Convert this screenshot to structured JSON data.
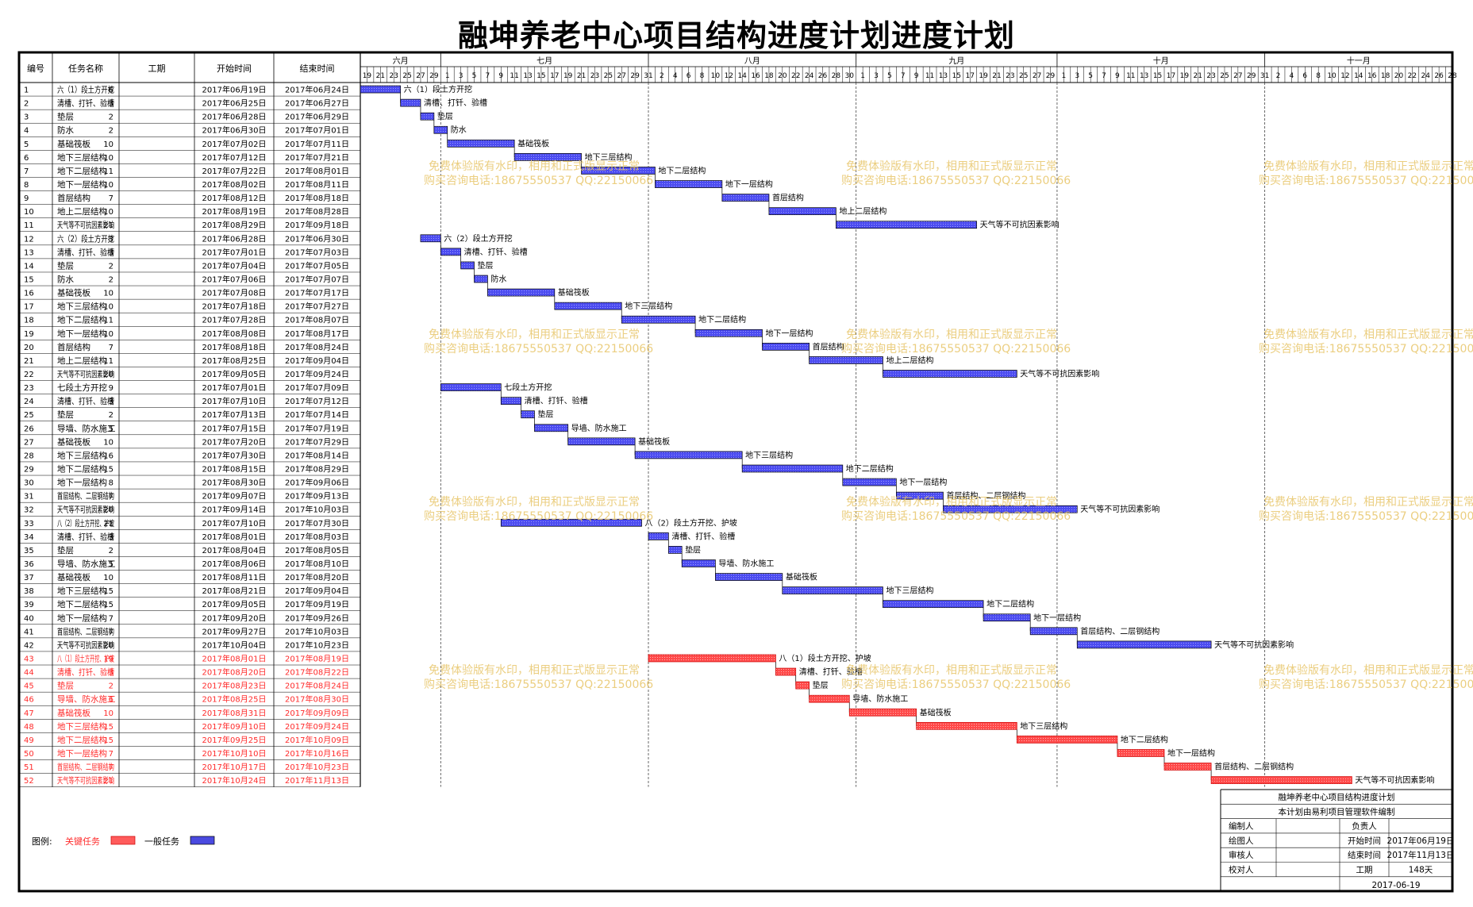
{
  "title": "融坤养老中心项目结构进度计划进度计划",
  "headers": {
    "no": "编号",
    "name": "任务名称",
    "duration": "工期",
    "start": "开始时间",
    "end": "结束时间"
  },
  "timeline": {
    "months": [
      "六月",
      "七月",
      "八月",
      "九月",
      "十月",
      "十一月"
    ],
    "start_date": "2017-06-19",
    "end_date": "2017-11-28"
  },
  "watermark": {
    "line1": "免费体验版有水印，相用和正式版显示正常",
    "line2": "购买咨询电话:18675550537 QQ:22150066"
  },
  "legend": {
    "label": "图例:",
    "critical": "关键任务",
    "normal": "一般任务",
    "critical_color": "#ff5b5b",
    "normal_color": "#4a4ae0"
  },
  "title_block": {
    "project": "融坤养老中心项目结构进度计划",
    "software": "本计划由易利项目管理软件编制",
    "rows": [
      [
        "编制人",
        "",
        "负责人",
        ""
      ],
      [
        "绘图人",
        "",
        "开始时间",
        "2017年06月19日"
      ],
      [
        "审核人",
        "",
        "结束时间",
        "2017年11月13日"
      ],
      [
        "校对人",
        "",
        "工期",
        "148天"
      ]
    ],
    "date": "2017-06-19"
  },
  "chart_data": {
    "type": "gantt",
    "tasks": [
      {
        "id": "1",
        "name": "六（1）段土方开挖",
        "duration": 6,
        "start": "2017-06-19",
        "end": "2017-06-24",
        "label": "六（1）段土方开挖",
        "critical": false
      },
      {
        "id": "2",
        "name": "清槽、打钎、验槽",
        "duration": 3,
        "start": "2017-06-25",
        "end": "2017-06-27",
        "label": "清槽、打钎、验槽",
        "critical": false
      },
      {
        "id": "3",
        "name": "垫层",
        "duration": 2,
        "start": "2017-06-28",
        "end": "2017-06-29",
        "label": "垫层",
        "critical": false
      },
      {
        "id": "4",
        "name": "防水",
        "duration": 2,
        "start": "2017-06-30",
        "end": "2017-07-01",
        "label": "防水",
        "critical": false
      },
      {
        "id": "5",
        "name": "基础筏板",
        "duration": 10,
        "start": "2017-07-02",
        "end": "2017-07-11",
        "label": "基础筏板",
        "critical": false
      },
      {
        "id": "6",
        "name": "地下三层结构",
        "duration": 10,
        "start": "2017-07-12",
        "end": "2017-07-21",
        "label": "地下三层结构",
        "critical": false
      },
      {
        "id": "7",
        "name": "地下二层结构",
        "duration": 11,
        "start": "2017-07-22",
        "end": "2017-08-01",
        "label": "地下二层结构",
        "critical": false
      },
      {
        "id": "8",
        "name": "地下一层结构",
        "duration": 10,
        "start": "2017-08-02",
        "end": "2017-08-11",
        "label": "地下一层结构",
        "critical": false
      },
      {
        "id": "9",
        "name": "首层结构",
        "duration": 7,
        "start": "2017-08-12",
        "end": "2017-08-18",
        "label": "首层结构",
        "critical": false
      },
      {
        "id": "10",
        "name": "地上二层结构",
        "duration": 10,
        "start": "2017-08-19",
        "end": "2017-08-28",
        "label": "地上二层结构",
        "critical": false
      },
      {
        "id": "11",
        "name": "天气等不可抗因素影响",
        "duration": 21,
        "start": "2017-08-29",
        "end": "2017-09-18",
        "label": "天气等不可抗因素影响",
        "critical": false
      },
      {
        "id": "12",
        "name": "六（2）段土方开挖",
        "duration": 3,
        "start": "2017-06-28",
        "end": "2017-06-30",
        "label": "六（2）段土方开挖",
        "critical": false
      },
      {
        "id": "13",
        "name": "清槽、打钎、验槽",
        "duration": 3,
        "start": "2017-07-01",
        "end": "2017-07-03",
        "label": "清槽、打钎、验槽",
        "critical": false
      },
      {
        "id": "14",
        "name": "垫层",
        "duration": 2,
        "start": "2017-07-04",
        "end": "2017-07-05",
        "label": "垫层",
        "critical": false
      },
      {
        "id": "15",
        "name": "防水",
        "duration": 2,
        "start": "2017-07-06",
        "end": "2017-07-07",
        "label": "防水",
        "critical": false
      },
      {
        "id": "16",
        "name": "基础筏板",
        "duration": 10,
        "start": "2017-07-08",
        "end": "2017-07-17",
        "label": "基础筏板",
        "critical": false
      },
      {
        "id": "17",
        "name": "地下三层结构",
        "duration": 10,
        "start": "2017-07-18",
        "end": "2017-07-27",
        "label": "地下三层结构",
        "critical": false
      },
      {
        "id": "18",
        "name": "地下二层结构",
        "duration": 11,
        "start": "2017-07-28",
        "end": "2017-08-07",
        "label": "地下二层结构",
        "critical": false
      },
      {
        "id": "19",
        "name": "地下一层结构",
        "duration": 10,
        "start": "2017-08-08",
        "end": "2017-08-17",
        "label": "地下一层结构",
        "critical": false
      },
      {
        "id": "20",
        "name": "首层结构",
        "duration": 7,
        "start": "2017-08-18",
        "end": "2017-08-24",
        "label": "首层结构",
        "critical": false
      },
      {
        "id": "21",
        "name": "地上二层结构",
        "duration": 11,
        "start": "2017-08-25",
        "end": "2017-09-04",
        "label": "地上二层结构",
        "critical": false
      },
      {
        "id": "22",
        "name": "天气等不可抗因素影响",
        "duration": 20,
        "start": "2017-09-05",
        "end": "2017-09-24",
        "label": "天气等不可抗因素影响",
        "critical": false
      },
      {
        "id": "23",
        "name": "七段土方开挖",
        "duration": 9,
        "start": "2017-07-01",
        "end": "2017-07-09",
        "label": "七段土方开挖",
        "critical": false
      },
      {
        "id": "24",
        "name": "清槽、打钎、验槽",
        "duration": 3,
        "start": "2017-07-10",
        "end": "2017-07-12",
        "label": "清槽、打钎、验槽",
        "critical": false
      },
      {
        "id": "25",
        "name": "垫层",
        "duration": 2,
        "start": "2017-07-13",
        "end": "2017-07-14",
        "label": "垫层",
        "critical": false
      },
      {
        "id": "26",
        "name": "导墙、防水施工",
        "duration": 5,
        "start": "2017-07-15",
        "end": "2017-07-19",
        "label": "导墙、防水施工",
        "critical": false
      },
      {
        "id": "27",
        "name": "基础筏板",
        "duration": 10,
        "start": "2017-07-20",
        "end": "2017-07-29",
        "label": "基础筏板",
        "critical": false
      },
      {
        "id": "28",
        "name": "地下三层结构",
        "duration": 16,
        "start": "2017-07-30",
        "end": "2017-08-14",
        "label": "地下三层结构",
        "critical": false
      },
      {
        "id": "29",
        "name": "地下二层结构",
        "duration": 15,
        "start": "2017-08-15",
        "end": "2017-08-29",
        "label": "地下二层结构",
        "critical": false
      },
      {
        "id": "30",
        "name": "地下一层结构",
        "duration": 8,
        "start": "2017-08-30",
        "end": "2017-09-06",
        "label": "地下一层结构",
        "critical": false
      },
      {
        "id": "31",
        "name": "首层结构、二层钢结构",
        "duration": 7,
        "start": "2017-09-07",
        "end": "2017-09-13",
        "label": "首层结构、二层钢结构",
        "critical": false
      },
      {
        "id": "32",
        "name": "天气等不可抗因素影响",
        "duration": 20,
        "start": "2017-09-14",
        "end": "2017-10-03",
        "label": "天气等不可抗因素影响",
        "critical": false
      },
      {
        "id": "33",
        "name": "八（2）段土方开挖、护坡",
        "duration": 21,
        "start": "2017-07-10",
        "end": "2017-07-30",
        "label": "八（2）段土方开挖、护坡",
        "critical": false
      },
      {
        "id": "34",
        "name": "清槽、打钎、验槽",
        "duration": 3,
        "start": "2017-08-01",
        "end": "2017-08-03",
        "label": "清槽、打钎、验槽",
        "critical": false
      },
      {
        "id": "35",
        "name": "垫层",
        "duration": 2,
        "start": "2017-08-04",
        "end": "2017-08-05",
        "label": "垫层",
        "critical": false
      },
      {
        "id": "36",
        "name": "导墙、防水施工",
        "duration": 5,
        "start": "2017-08-06",
        "end": "2017-08-10",
        "label": "导墙、防水施工",
        "critical": false
      },
      {
        "id": "37",
        "name": "基础筏板",
        "duration": 10,
        "start": "2017-08-11",
        "end": "2017-08-20",
        "label": "基础筏板",
        "critical": false
      },
      {
        "id": "38",
        "name": "地下三层结构",
        "duration": 15,
        "start": "2017-08-21",
        "end": "2017-09-04",
        "label": "地下三层结构",
        "critical": false
      },
      {
        "id": "39",
        "name": "地下二层结构",
        "duration": 15,
        "start": "2017-09-05",
        "end": "2017-09-19",
        "label": "地下二层结构",
        "critical": false
      },
      {
        "id": "40",
        "name": "地下一层结构",
        "duration": 7,
        "start": "2017-09-20",
        "end": "2017-09-26",
        "label": "地下一层结构",
        "critical": false
      },
      {
        "id": "41",
        "name": "首层结构、二层钢结构",
        "duration": 7,
        "start": "2017-09-27",
        "end": "2017-10-03",
        "label": "首层结构、二层钢结构",
        "critical": false
      },
      {
        "id": "42",
        "name": "天气等不可抗因素影响",
        "duration": 20,
        "start": "2017-10-04",
        "end": "2017-10-23",
        "label": "天气等不可抗因素影响",
        "critical": false
      },
      {
        "id": "43",
        "name": "八（1）段土方开挖、护坡",
        "duration": 19,
        "start": "2017-08-01",
        "end": "2017-08-19",
        "label": "八（1）段土方开挖、护坡",
        "critical": true
      },
      {
        "id": "44",
        "name": "清槽、打钎、验槽",
        "duration": 3,
        "start": "2017-08-20",
        "end": "2017-08-22",
        "label": "清槽、打钎、验槽",
        "critical": true
      },
      {
        "id": "45",
        "name": "垫层",
        "duration": 2,
        "start": "2017-08-23",
        "end": "2017-08-24",
        "label": "垫层",
        "critical": true
      },
      {
        "id": "46",
        "name": "导墙、防水施工",
        "duration": 6,
        "start": "2017-08-25",
        "end": "2017-08-30",
        "label": "导墙、防水施工",
        "critical": true
      },
      {
        "id": "47",
        "name": "基础筏板",
        "duration": 10,
        "start": "2017-08-31",
        "end": "2017-09-09",
        "label": "基础筏板",
        "critical": true
      },
      {
        "id": "48",
        "name": "地下三层结构",
        "duration": 15,
        "start": "2017-09-10",
        "end": "2017-09-24",
        "label": "地下三层结构",
        "critical": true
      },
      {
        "id": "49",
        "name": "地下二层结构",
        "duration": 15,
        "start": "2017-09-25",
        "end": "2017-10-09",
        "label": "地下二层结构",
        "critical": true
      },
      {
        "id": "50",
        "name": "地下一层结构",
        "duration": 7,
        "start": "2017-10-10",
        "end": "2017-10-16",
        "label": "地下一层结构",
        "critical": true
      },
      {
        "id": "51",
        "name": "首层结构、二层钢结构",
        "duration": 7,
        "start": "2017-10-17",
        "end": "2017-10-23",
        "label": "首层结构、二层钢结构",
        "critical": true
      },
      {
        "id": "52",
        "name": "天气等不可抗因素影响",
        "duration": 21,
        "start": "2017-10-24",
        "end": "2017-11-13",
        "label": "天气等不可抗因素影响",
        "critical": true
      }
    ]
  }
}
